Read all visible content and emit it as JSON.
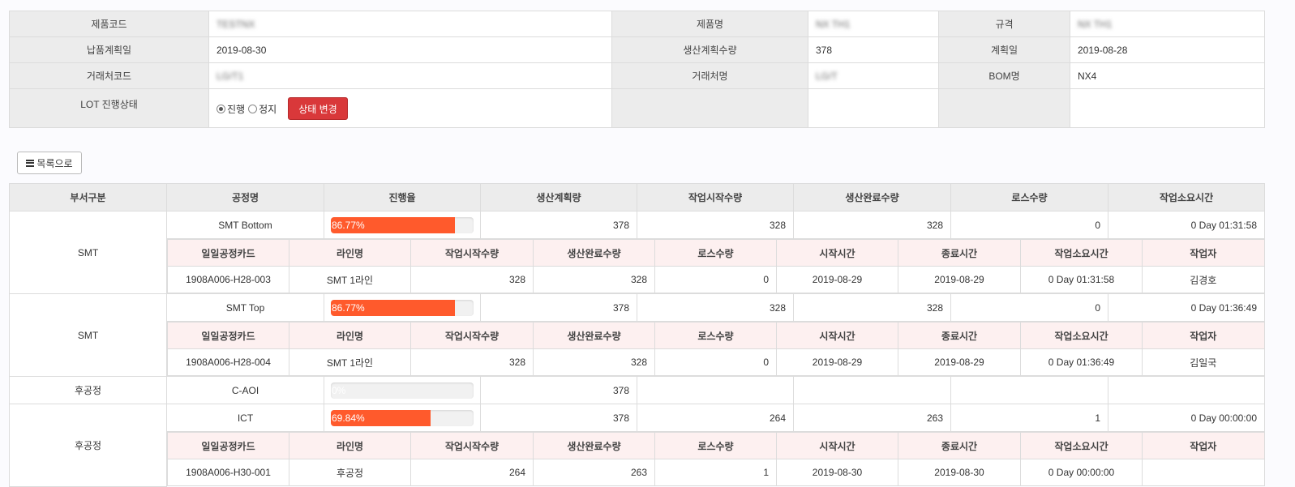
{
  "info": {
    "product_code_label": "제품코드",
    "product_code_value": "TESTNX",
    "product_name_label": "제품명",
    "product_name_value": "NX TH1",
    "spec_label": "규격",
    "spec_value": "NX TH1",
    "delivery_date_label": "납품계획일",
    "delivery_date_value": "2019-08-30",
    "plan_qty_label": "생산계획수량",
    "plan_qty_value": "378",
    "plan_date_label": "계획일",
    "plan_date_value": "2019-08-28",
    "client_code_label": "거래처코드",
    "client_code_value": "LG/T1",
    "client_name_label": "거래처명",
    "client_name_value": "LG/T",
    "bom_label": "BOM명",
    "bom_value": "NX4",
    "lot_status_label": "LOT 진행상태",
    "radio_progress": "진행",
    "radio_stop": "정지",
    "change_status_button": "상태 변경"
  },
  "list_button": "목록으로",
  "headers": [
    "부서구분",
    "공정명",
    "진행율",
    "생산계획량",
    "작업시작수량",
    "생산완료수량",
    "로스수량",
    "작업소요시간"
  ],
  "sub_headers": [
    "일일공정카드",
    "라인명",
    "작업시작수량",
    "생산완료수량",
    "로스수량",
    "시작시간",
    "종료시간",
    "작업소요시간",
    "작업자"
  ],
  "rows": [
    {
      "dept": "SMT",
      "process": "SMT Bottom",
      "progress_text": "86.77%",
      "progress": 86.77,
      "plan": "378",
      "start": "328",
      "done": "328",
      "loss": "0",
      "time": "0 Day 01:31:58",
      "detail": {
        "card": "1908A006-H28-003",
        "line": "SMT 1라인",
        "start": "328",
        "done": "328",
        "loss": "0",
        "start_time": "2019-08-29",
        "end_time": "2019-08-29",
        "time": "0 Day 01:31:58",
        "worker": "김경호"
      }
    },
    {
      "dept": "SMT",
      "process": "SMT Top",
      "progress_text": "86.77%",
      "progress": 86.77,
      "plan": "378",
      "start": "328",
      "done": "328",
      "loss": "0",
      "time": "0 Day 01:36:49",
      "detail": {
        "card": "1908A006-H28-004",
        "line": "SMT 1라인",
        "start": "328",
        "done": "328",
        "loss": "0",
        "start_time": "2019-08-29",
        "end_time": "2019-08-29",
        "time": "0 Day 01:36:49",
        "worker": "김일국"
      }
    },
    {
      "dept": "후공정",
      "process": "C-AOI",
      "progress_text": "0%",
      "progress": 0,
      "plan": "378"
    },
    {
      "dept": "후공정",
      "process": "ICT",
      "progress_text": "69.84%",
      "progress": 69.84,
      "plan": "378",
      "start": "264",
      "done": "263",
      "loss": "1",
      "time": "0 Day 00:00:00",
      "detail": {
        "card": "1908A006-H30-001",
        "line": "후공정",
        "start": "264",
        "done": "263",
        "loss": "1",
        "start_time": "2019-08-30",
        "end_time": "2019-08-30",
        "time": "0 Day 00:00:00",
        "worker": ""
      }
    }
  ],
  "colors": {
    "accent_red": "#d9383a",
    "progress_fill": "#ff5a2c"
  }
}
